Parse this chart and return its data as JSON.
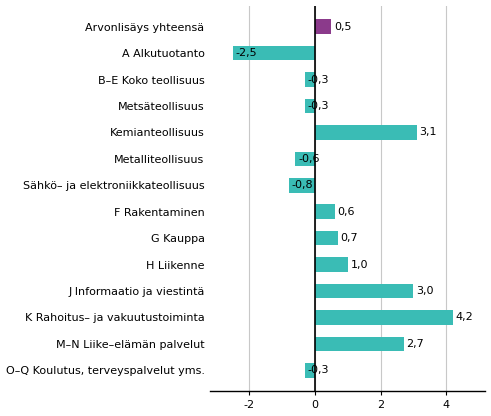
{
  "categories": [
    "Arvonlisäys yhteensä",
    "A Alkutuotanto",
    "B–E Koko teollisuus",
    "Metsäteollisuus",
    "Kemianteollisuus",
    "Metalliteollisuus",
    "Sähkö– ja elektroniikkateollisuus",
    "F Rakentaminen",
    "G Kauppa",
    "H Liikenne",
    "J Informaatio ja viestintä",
    "K Rahoitus– ja vakuutustoiminta",
    "M–N Liike–elämän palvelut",
    "O–Q Koulutus, terveyspalvelut yms."
  ],
  "values": [
    0.5,
    -2.5,
    -0.3,
    -0.3,
    3.1,
    -0.6,
    -0.8,
    0.6,
    0.7,
    1.0,
    3.0,
    4.2,
    2.7,
    -0.3
  ],
  "bar_colors": [
    "#8B3A8B",
    "#3ABCB5",
    "#3ABCB5",
    "#3ABCB5",
    "#3ABCB5",
    "#3ABCB5",
    "#3ABCB5",
    "#3ABCB5",
    "#3ABCB5",
    "#3ABCB5",
    "#3ABCB5",
    "#3ABCB5",
    "#3ABCB5",
    "#3ABCB5"
  ],
  "xlim": [
    -3.2,
    5.2
  ],
  "xticks": [
    -2,
    0,
    2,
    4
  ],
  "background_color": "#ffffff",
  "grid_color": "#c8c8c8",
  "label_fontsize": 8.0,
  "value_fontsize": 8.0,
  "bar_height": 0.55
}
